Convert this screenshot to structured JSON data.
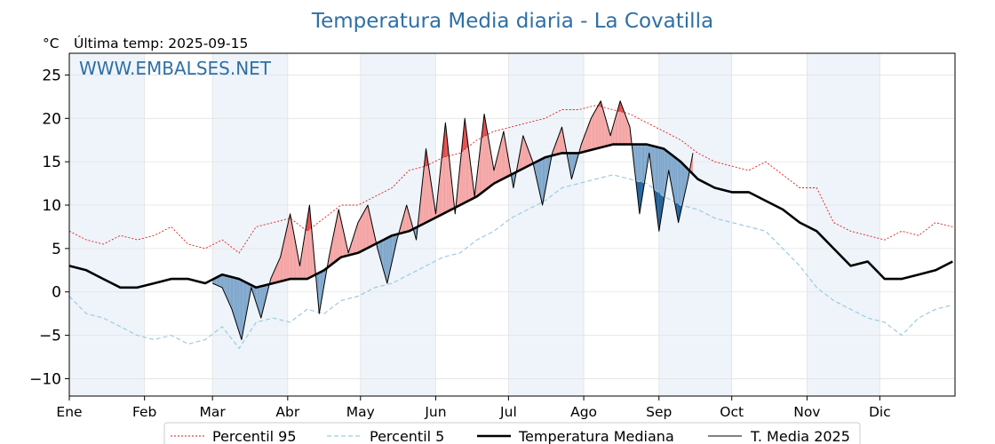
{
  "title": "Temperatura Media diaria - La Covatilla",
  "unit_label": "°C",
  "last_temp_label": "Última temp: 2025-09-15",
  "watermark": "WWW.EMBALSES.NET",
  "colors": {
    "title": "#2e6fa6",
    "p95": "#e41a1c",
    "p5": "#9ecae1",
    "median": "#000000",
    "current": "#000000",
    "warm_light": "#f4a3a3",
    "warm_dark": "#e34a4a",
    "cold_light": "#7ea6cb",
    "cold_dark": "#1f5f99",
    "band": "#eef4fa"
  },
  "chart_data": {
    "type": "line",
    "title": "Temperatura Media diaria - La Covatilla",
    "xlabel": "",
    "ylabel": "°C",
    "ylim": [
      -12,
      27.5
    ],
    "yticks": [
      -10,
      -5,
      0,
      5,
      10,
      15,
      20,
      25
    ],
    "xlim": [
      "2025-01-01",
      "2025-12-31"
    ],
    "month_labels": [
      "Ene",
      "Feb",
      "Mar",
      "Abr",
      "May",
      "Jun",
      "Jul",
      "Ago",
      "Sep",
      "Oct",
      "Nov",
      "Dic"
    ],
    "grid": true,
    "legend_placement": "bottom-center",
    "series": [
      {
        "name": "Percentil 95",
        "style": "dotted-red",
        "x": [
          "2025-01-01",
          "2025-01-08",
          "2025-01-15",
          "2025-01-22",
          "2025-01-29",
          "2025-02-05",
          "2025-02-12",
          "2025-02-19",
          "2025-02-26",
          "2025-03-05",
          "2025-03-12",
          "2025-03-19",
          "2025-03-26",
          "2025-04-02",
          "2025-04-09",
          "2025-04-16",
          "2025-04-23",
          "2025-04-30",
          "2025-05-07",
          "2025-05-14",
          "2025-05-21",
          "2025-05-28",
          "2025-06-04",
          "2025-06-11",
          "2025-06-18",
          "2025-06-25",
          "2025-07-02",
          "2025-07-09",
          "2025-07-16",
          "2025-07-23",
          "2025-07-30",
          "2025-08-06",
          "2025-08-13",
          "2025-08-20",
          "2025-08-27",
          "2025-09-03",
          "2025-09-10",
          "2025-09-17",
          "2025-09-24",
          "2025-10-01",
          "2025-10-08",
          "2025-10-15",
          "2025-10-22",
          "2025-10-29",
          "2025-11-05",
          "2025-11-12",
          "2025-11-19",
          "2025-11-26",
          "2025-12-03",
          "2025-12-10",
          "2025-12-17",
          "2025-12-24",
          "2025-12-31"
        ],
        "values": [
          7.0,
          6.0,
          5.5,
          6.5,
          6.0,
          6.5,
          7.5,
          5.5,
          5.0,
          6.0,
          4.5,
          7.5,
          8.0,
          8.5,
          7.0,
          8.5,
          10.0,
          10.0,
          11.0,
          12.0,
          14.0,
          14.5,
          15.5,
          16.0,
          17.5,
          18.5,
          19.0,
          19.5,
          20.0,
          21.0,
          21.0,
          21.5,
          21.0,
          20.5,
          19.5,
          18.5,
          17.5,
          16.0,
          15.0,
          14.5,
          14.0,
          15.0,
          13.5,
          12.0,
          12.0,
          8.0,
          7.0,
          6.5,
          6.0,
          7.0,
          6.5,
          8.0,
          7.5
        ]
      },
      {
        "name": "Percentil 5",
        "style": "dashed-lightblue",
        "x": [
          "2025-01-01",
          "2025-01-08",
          "2025-01-15",
          "2025-01-22",
          "2025-01-29",
          "2025-02-05",
          "2025-02-12",
          "2025-02-19",
          "2025-02-26",
          "2025-03-05",
          "2025-03-12",
          "2025-03-19",
          "2025-03-26",
          "2025-04-02",
          "2025-04-09",
          "2025-04-16",
          "2025-04-23",
          "2025-04-30",
          "2025-05-07",
          "2025-05-14",
          "2025-05-21",
          "2025-05-28",
          "2025-06-04",
          "2025-06-11",
          "2025-06-18",
          "2025-06-25",
          "2025-07-02",
          "2025-07-09",
          "2025-07-16",
          "2025-07-23",
          "2025-07-30",
          "2025-08-06",
          "2025-08-13",
          "2025-08-20",
          "2025-08-27",
          "2025-09-03",
          "2025-09-10",
          "2025-09-17",
          "2025-09-24",
          "2025-10-01",
          "2025-10-08",
          "2025-10-15",
          "2025-10-22",
          "2025-10-29",
          "2025-11-05",
          "2025-11-12",
          "2025-11-19",
          "2025-11-26",
          "2025-12-03",
          "2025-12-10",
          "2025-12-17",
          "2025-12-24",
          "2025-12-31"
        ],
        "values": [
          -0.5,
          -2.5,
          -3.0,
          -4.0,
          -5.0,
          -5.5,
          -5.0,
          -6.0,
          -5.5,
          -4.0,
          -6.5,
          -3.5,
          -3.0,
          -3.5,
          -2.0,
          -2.5,
          -1.0,
          -0.5,
          0.5,
          1.0,
          2.0,
          3.0,
          4.0,
          4.5,
          6.0,
          7.0,
          8.5,
          9.5,
          10.5,
          12.0,
          12.5,
          13.0,
          13.5,
          13.0,
          12.5,
          11.0,
          10.0,
          9.5,
          8.5,
          8.0,
          7.5,
          7.0,
          5.0,
          3.0,
          0.5,
          -1.0,
          -2.0,
          -3.0,
          -3.5,
          -5.0,
          -3.0,
          -2.0,
          -1.5
        ]
      },
      {
        "name": "Temperatura Mediana",
        "style": "thick-black",
        "x": [
          "2025-01-01",
          "2025-01-08",
          "2025-01-15",
          "2025-01-22",
          "2025-01-29",
          "2025-02-05",
          "2025-02-12",
          "2025-02-19",
          "2025-02-26",
          "2025-03-05",
          "2025-03-12",
          "2025-03-19",
          "2025-03-26",
          "2025-04-02",
          "2025-04-09",
          "2025-04-16",
          "2025-04-23",
          "2025-04-30",
          "2025-05-07",
          "2025-05-14",
          "2025-05-21",
          "2025-05-28",
          "2025-06-04",
          "2025-06-11",
          "2025-06-18",
          "2025-06-25",
          "2025-07-02",
          "2025-07-09",
          "2025-07-16",
          "2025-07-23",
          "2025-07-30",
          "2025-08-06",
          "2025-08-13",
          "2025-08-20",
          "2025-08-27",
          "2025-09-03",
          "2025-09-10",
          "2025-09-17",
          "2025-09-24",
          "2025-10-01",
          "2025-10-08",
          "2025-10-15",
          "2025-10-22",
          "2025-10-29",
          "2025-11-05",
          "2025-11-12",
          "2025-11-19",
          "2025-11-26",
          "2025-12-03",
          "2025-12-10",
          "2025-12-17",
          "2025-12-24",
          "2025-12-31"
        ],
        "values": [
          3.0,
          2.5,
          1.5,
          0.5,
          0.5,
          1.0,
          1.5,
          1.5,
          1.0,
          2.0,
          1.5,
          0.5,
          1.0,
          1.5,
          1.5,
          2.5,
          4.0,
          4.5,
          5.5,
          6.5,
          7.0,
          8.0,
          9.0,
          10.0,
          11.0,
          12.5,
          13.5,
          14.5,
          15.5,
          16.0,
          16.0,
          16.5,
          17.0,
          17.0,
          17.0,
          16.5,
          15.0,
          13.0,
          12.0,
          11.5,
          11.5,
          10.5,
          9.5,
          8.0,
          7.0,
          5.0,
          3.0,
          3.5,
          1.5,
          1.5,
          2.0,
          2.5,
          3.5
        ]
      },
      {
        "name": "T. Media 2025",
        "style": "thin-black",
        "x": [
          "2025-03-01",
          "2025-03-05",
          "2025-03-09",
          "2025-03-13",
          "2025-03-17",
          "2025-03-21",
          "2025-03-25",
          "2025-03-29",
          "2025-04-02",
          "2025-04-06",
          "2025-04-10",
          "2025-04-14",
          "2025-04-18",
          "2025-04-22",
          "2025-04-26",
          "2025-04-30",
          "2025-05-04",
          "2025-05-08",
          "2025-05-12",
          "2025-05-16",
          "2025-05-20",
          "2025-05-24",
          "2025-05-28",
          "2025-06-01",
          "2025-06-05",
          "2025-06-09",
          "2025-06-13",
          "2025-06-17",
          "2025-06-21",
          "2025-06-25",
          "2025-06-29",
          "2025-07-03",
          "2025-07-07",
          "2025-07-11",
          "2025-07-15",
          "2025-07-19",
          "2025-07-23",
          "2025-07-27",
          "2025-07-31",
          "2025-08-04",
          "2025-08-08",
          "2025-08-12",
          "2025-08-16",
          "2025-08-20",
          "2025-08-24",
          "2025-08-28",
          "2025-09-01",
          "2025-09-05",
          "2025-09-09",
          "2025-09-13",
          "2025-09-15"
        ],
        "values": [
          1.0,
          0.5,
          -2.0,
          -5.5,
          0.5,
          -3.0,
          1.5,
          4.0,
          9.0,
          3.0,
          10.0,
          -2.5,
          4.0,
          9.5,
          4.5,
          8.0,
          10.0,
          5.0,
          1.0,
          6.0,
          10.0,
          6.0,
          16.5,
          9.0,
          19.5,
          9.0,
          20.0,
          11.0,
          20.5,
          14.0,
          18.5,
          12.0,
          18.0,
          15.0,
          10.0,
          16.0,
          19.0,
          13.0,
          17.0,
          20.0,
          22.0,
          18.0,
          22.0,
          19.0,
          9.0,
          16.0,
          7.0,
          14.0,
          8.0,
          13.0,
          16.0
        ]
      }
    ]
  },
  "legend": {
    "p95": "Percentil 95",
    "p5": "Percentil 5",
    "median": "Temperatura Mediana",
    "current": "T. Media 2025"
  }
}
